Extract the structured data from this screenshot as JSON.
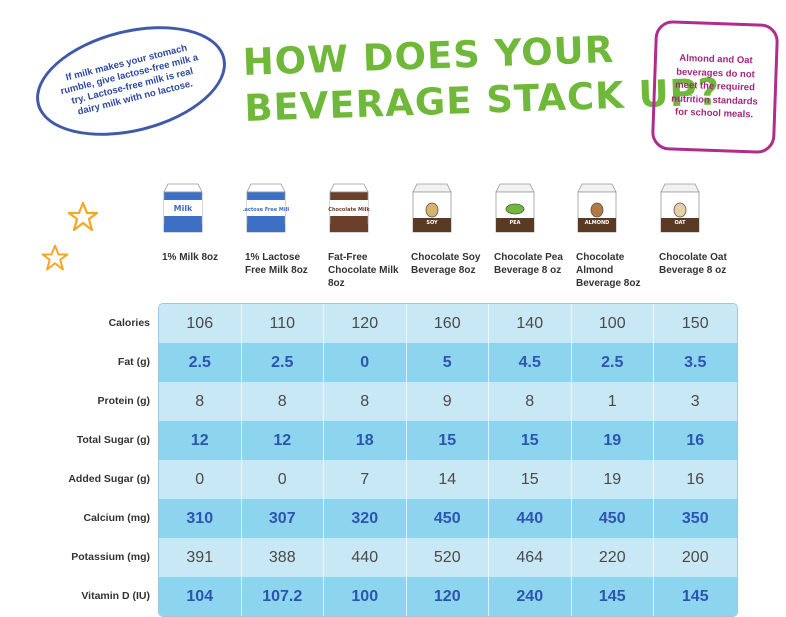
{
  "title": {
    "line1": "HOW DOES YOUR",
    "line2": "BEVERAGE STACK UP?"
  },
  "left_note": "If milk makes your stomach rumble, give lactose-free milk a try. Lactose-free milk is real dairy milk with no lactose.",
  "right_note": "Almond and Oat beverages do not meet the required nutrition standards for school meals.",
  "beverages": [
    {
      "label": "1% Milk 8oz",
      "carton_text": "Milk",
      "icon": "milk-carton-icon"
    },
    {
      "label": "1% Lactose Free Milk 8oz",
      "carton_text": "Lactose Free Milk",
      "icon": "lactose-free-milk-carton-icon"
    },
    {
      "label": "Fat-Free Chocolate Milk 8oz",
      "carton_text": "Chocolate Milk",
      "icon": "chocolate-milk-carton-icon"
    },
    {
      "label": "Chocolate Soy Beverage 8oz",
      "carton_text": "SOY",
      "icon": "soy-carton-icon"
    },
    {
      "label": "Chocolate Pea Beverage 8 oz",
      "carton_text": "PEA",
      "icon": "pea-carton-icon"
    },
    {
      "label": "Chocolate Almond Beverage 8oz",
      "carton_text": "ALMOND",
      "icon": "almond-carton-icon"
    },
    {
      "label": "Chocolate Oat Beverage 8 oz",
      "carton_text": "OAT",
      "icon": "oat-carton-icon"
    }
  ],
  "nutrients": [
    {
      "label": "Calories",
      "values": [
        "106",
        "110",
        "120",
        "160",
        "140",
        "100",
        "150"
      ]
    },
    {
      "label": "Fat (g)",
      "values": [
        "2.5",
        "2.5",
        "0",
        "5",
        "4.5",
        "2.5",
        "3.5"
      ]
    },
    {
      "label": "Protein (g)",
      "values": [
        "8",
        "8",
        "8",
        "9",
        "8",
        "1",
        "3"
      ]
    },
    {
      "label": "Total Sugar (g)",
      "values": [
        "12",
        "12",
        "18",
        "15",
        "15",
        "19",
        "16"
      ]
    },
    {
      "label": "Added Sugar (g)",
      "values": [
        "0",
        "0",
        "7",
        "14",
        "15",
        "19",
        "16"
      ]
    },
    {
      "label": "Calcium (mg)",
      "values": [
        "310",
        "307",
        "320",
        "450",
        "440",
        "450",
        "350"
      ]
    },
    {
      "label": "Potassium (mg)",
      "values": [
        "391",
        "388",
        "440",
        "520",
        "464",
        "220",
        "200"
      ]
    },
    {
      "label": "Vitamin D (IU)",
      "values": [
        "104",
        "107.2",
        "100",
        "120",
        "240",
        "145",
        "145"
      ]
    }
  ],
  "colors": {
    "title_green": "#6fb83a",
    "note_blue": "#3f5aa8",
    "note_magenta": "#b02d8f",
    "row_light": "#c9e8f5",
    "row_dark": "#8dd4ef",
    "value_blue": "#2d55b0",
    "star_orange": "#f5a623"
  }
}
